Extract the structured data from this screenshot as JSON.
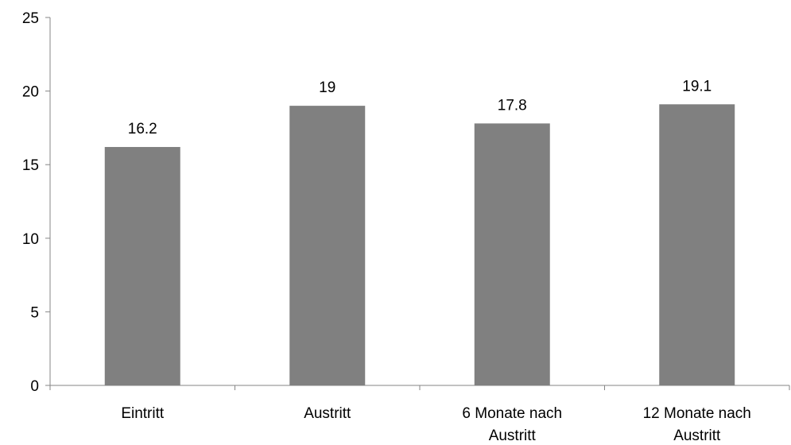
{
  "chart_data": {
    "type": "bar",
    "categories": [
      [
        "Eintritt"
      ],
      [
        "Austritt"
      ],
      [
        "6 Monate nach",
        "Austritt"
      ],
      [
        "12 Monate nach",
        "Austritt"
      ]
    ],
    "values": [
      16.2,
      19,
      17.8,
      19.1
    ],
    "data_labels": [
      "16.2",
      "19",
      "17.8",
      "19.1"
    ],
    "title": "",
    "xlabel": "",
    "ylabel": "",
    "ylim": [
      0,
      25
    ],
    "yticks": [
      0,
      5,
      10,
      15,
      20,
      25
    ],
    "grid": false,
    "legend": "none",
    "bar_color": "#808080",
    "axis_color": "#868686"
  }
}
